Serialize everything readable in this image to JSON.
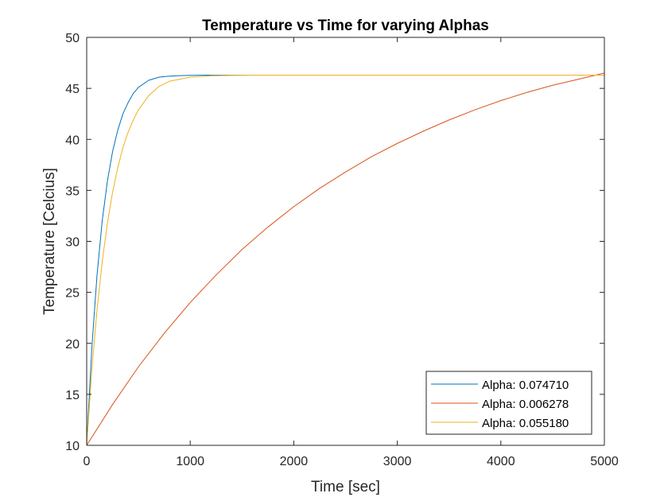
{
  "chart_data": {
    "type": "line",
    "title": "Temperature vs Time for varying Alphas",
    "xlabel": "Time [sec]",
    "ylabel": "Temperature [Celcius]",
    "xlim": [
      0,
      5000
    ],
    "ylim": [
      10,
      50
    ],
    "xticks": [
      0,
      1000,
      2000,
      3000,
      4000,
      5000
    ],
    "yticks": [
      10,
      15,
      20,
      25,
      30,
      35,
      40,
      45,
      50
    ],
    "grid": false,
    "legend_position": "bottom-right",
    "series": [
      {
        "name": "Alpha: 0.074710",
        "color": "#0072BD",
        "x": [
          0,
          50,
          100,
          150,
          200,
          250,
          300,
          350,
          400,
          450,
          500,
          600,
          700,
          800,
          900,
          1000,
          1200,
          1400,
          1600,
          1800,
          2000,
          2270
        ],
        "y": [
          10,
          19.6,
          26.7,
          32.0,
          35.9,
          38.8,
          40.9,
          42.5,
          43.6,
          44.5,
          45.1,
          45.8,
          46.1,
          46.2,
          46.25,
          46.28,
          46.3,
          46.3,
          46.3,
          46.3,
          46.3,
          46.3
        ]
      },
      {
        "name": "Alpha: 0.006278",
        "color": "#D95319",
        "x": [
          0,
          250,
          500,
          750,
          1000,
          1250,
          1500,
          1750,
          2000,
          2250,
          2500,
          2750,
          3000,
          3250,
          3500,
          3750,
          4000,
          4250,
          4500,
          4750,
          5000
        ],
        "y": [
          10,
          14.0,
          17.7,
          21.0,
          24.0,
          26.7,
          29.2,
          31.4,
          33.4,
          35.2,
          36.8,
          38.3,
          39.6,
          40.8,
          41.9,
          42.9,
          43.8,
          44.6,
          45.3,
          45.9,
          46.5
        ]
      },
      {
        "name": "Alpha: 0.055180",
        "color": "#EDB120",
        "x": [
          0,
          50,
          100,
          150,
          200,
          250,
          300,
          350,
          400,
          450,
          500,
          600,
          700,
          800,
          900,
          1000,
          1200,
          1400,
          1600,
          2000,
          3000,
          4000,
          5000
        ],
        "y": [
          10,
          17.4,
          23.3,
          28.0,
          31.8,
          34.8,
          37.2,
          39.2,
          40.7,
          41.9,
          42.9,
          44.3,
          45.2,
          45.7,
          45.9,
          46.1,
          46.24,
          46.28,
          46.3,
          46.3,
          46.3,
          46.3,
          46.3
        ]
      }
    ]
  }
}
